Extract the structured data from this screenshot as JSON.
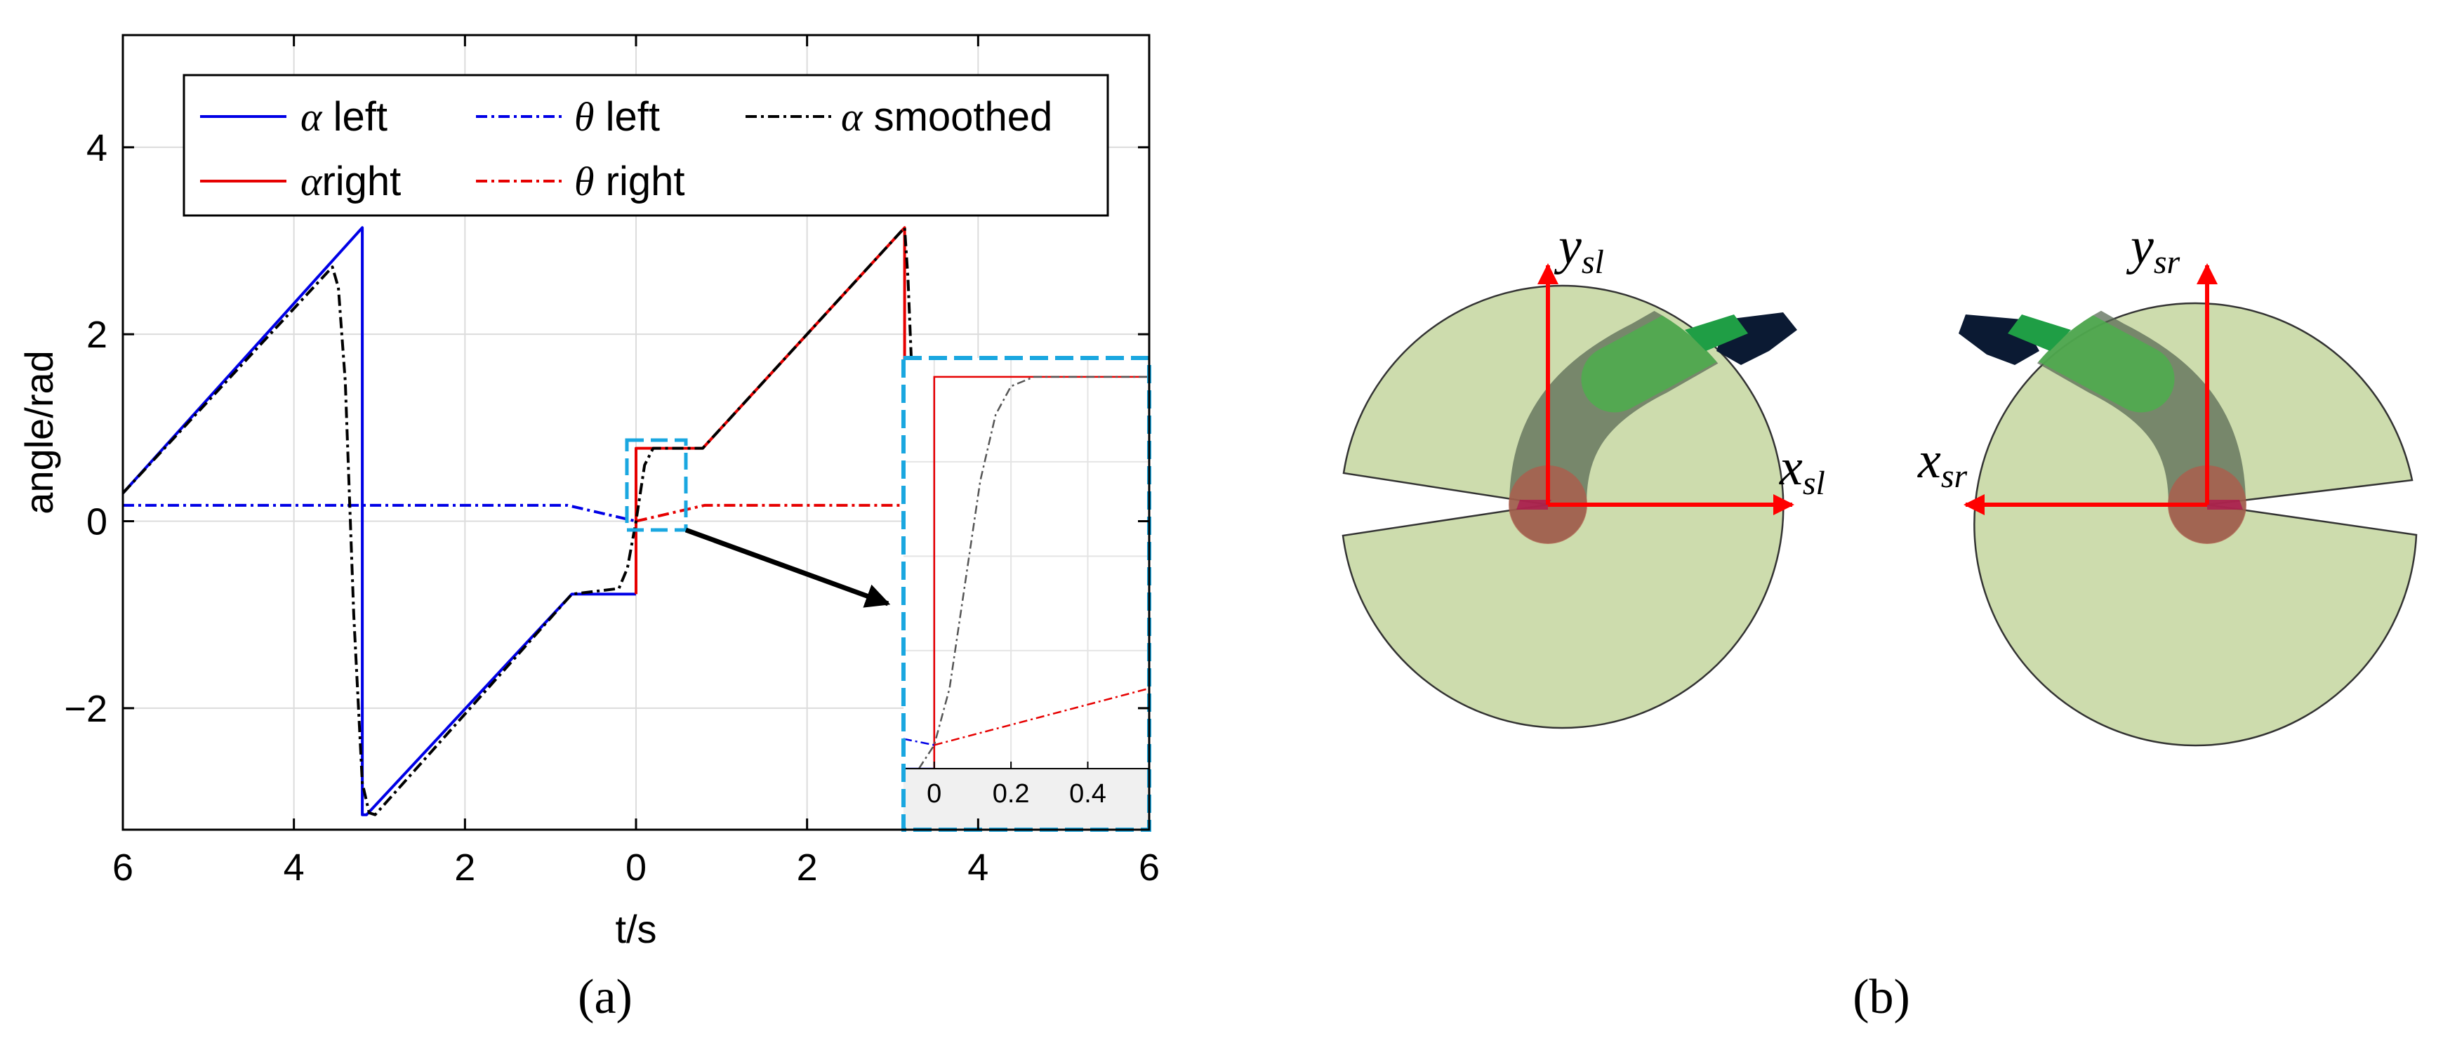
{
  "chart_data": {
    "type": "line",
    "xlabel": "t/s",
    "ylabel": "angle/rad",
    "xlim": [
      -6,
      6
    ],
    "ylim": [
      -3.3,
      5.2
    ],
    "x_axis_mirrored_tick_labels": true,
    "x_ticks": [
      -6,
      -4,
      -2,
      0,
      2,
      4,
      6
    ],
    "x_tick_labels": [
      "6",
      "4",
      "2",
      "0",
      "2",
      "4",
      "6"
    ],
    "y_ticks": [
      -2,
      0,
      2,
      4
    ],
    "y_tick_labels": [
      "−2",
      "0",
      "2",
      "4"
    ],
    "grid": true,
    "legend_placement": "top-center",
    "series": [
      {
        "name": "left",
        "greek": "α",
        "color": "#0000e6",
        "style": "solid",
        "x": [
          -6.0,
          -3.2,
          -3.2,
          -3.15,
          -0.75,
          -0.75,
          0.0
        ],
        "y": [
          0.3,
          3.14,
          -3.14,
          -3.14,
          -0.78,
          -0.78,
          -0.78
        ]
      },
      {
        "name": "right",
        "greek": "α",
        "color": "#e60000",
        "style": "solid",
        "x": [
          0.0,
          0.0,
          0.78,
          3.14,
          3.14
        ],
        "y": [
          -0.78,
          0.78,
          0.78,
          3.14,
          1.7
        ]
      },
      {
        "name": "left",
        "greek": "θ",
        "color": "#0000e6",
        "style": "dashdot",
        "x": [
          -6.0,
          -0.8,
          0.0
        ],
        "y": [
          0.17,
          0.17,
          0.0
        ]
      },
      {
        "name": "right",
        "greek": "θ",
        "color": "#e60000",
        "style": "dashdot",
        "x": [
          0.0,
          0.8,
          3.1
        ],
        "y": [
          0.0,
          0.17,
          0.17
        ]
      },
      {
        "name": "smoothed",
        "greek": "α",
        "color": "#000000",
        "style": "dashdot",
        "x": [
          -6.0,
          -3.55,
          -3.48,
          -3.4,
          -3.3,
          -3.2,
          -3.12,
          -3.05,
          -0.75,
          -0.2,
          -0.1,
          0.0,
          0.1,
          0.2,
          0.78,
          3.14,
          3.18,
          3.22
        ],
        "y": [
          0.3,
          2.72,
          2.5,
          1.5,
          -1.0,
          -2.8,
          -3.12,
          -3.14,
          -0.78,
          -0.72,
          -0.5,
          0.0,
          0.6,
          0.78,
          0.78,
          3.14,
          2.6,
          1.7
        ]
      }
    ],
    "inset": {
      "x_ticks": [
        0,
        0.2,
        0.4
      ],
      "x_tick_labels": [
        "0",
        "0.2",
        "0.4"
      ],
      "xlim": [
        -0.08,
        0.56
      ]
    }
  },
  "panel_labels": {
    "a": "(a)",
    "b": "(b)"
  },
  "diagram_b": {
    "left": {
      "x_axis": "x",
      "x_sub": "sl",
      "y_axis": "y",
      "y_sub": "sl"
    },
    "right": {
      "x_axis": "x",
      "x_sub": "sr",
      "y_axis": "y",
      "y_sub": "sr"
    },
    "disk_color": "#cddcad",
    "axis_color": "#ff0000"
  }
}
